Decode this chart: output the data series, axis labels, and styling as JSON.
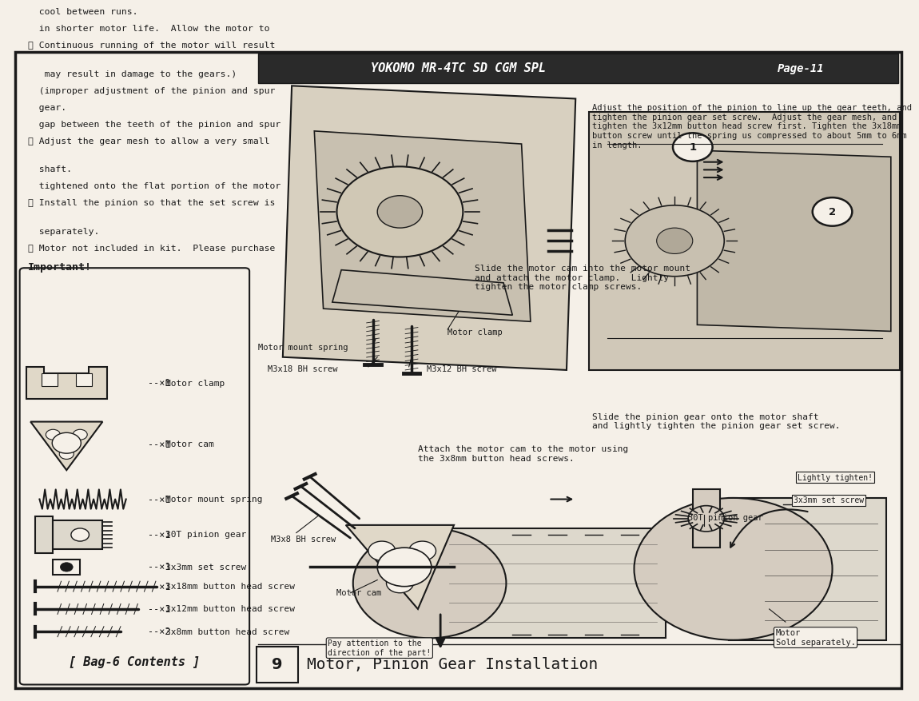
{
  "page_bg": "#f5f0e8",
  "border_color": "#1a1a1a",
  "title": "Motor, Pinion Gear Installation",
  "step_number": "9",
  "footer_text": "YOKOMO MR-4TC SD CGM SPL",
  "page_num": "Page-11",
  "bag_title": "[ Bag-6 Contents ]",
  "bag_items": [
    {
      "qty": "--×2",
      "desc": "3x8mm button head screw"
    },
    {
      "qty": "--×1",
      "desc": "3x12mm button head screw"
    },
    {
      "qty": "--×1",
      "desc": "3x18mm button head screw"
    },
    {
      "qty": "--×1",
      "desc": "3x3mm set screw"
    },
    {
      "qty": "--×1",
      "desc": "30T pinion gear"
    },
    {
      "qty": "--×1",
      "desc": "Motor mount spring"
    },
    {
      "qty": "--×1",
      "desc": "Motor cam"
    },
    {
      "qty": "--×1",
      "desc": "Motor clamp"
    }
  ],
  "important_title": "Important!",
  "important_items": [
    "① Motor not included in kit.  Please purchase\n  separately.",
    "② Install the pinion so that the set screw is\n  tightened onto the flat portion of the motor\n  shaft.",
    "③ Adjust the gear mesh to allow a very small\n  gap between the teeth of the pinion and spur\n  gear.\n  (improper adjustment of the pinion and spur\n   may result in damage to the gears.)",
    "④ Continuous running of the motor will result\n  in shorter motor life.  Allow the motor to\n  cool between runs."
  ]
}
